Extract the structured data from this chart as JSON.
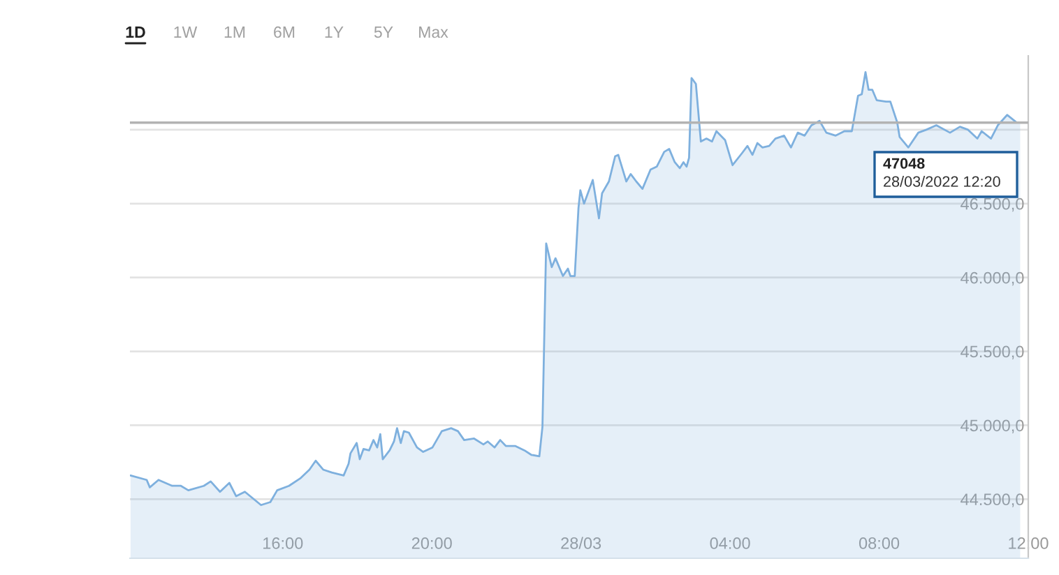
{
  "chart_data": {
    "type": "area",
    "x": [
      "2022-03-27T11:55",
      "2022-03-27T12:21",
      "2022-03-27T12:26",
      "2022-03-27T12:40",
      "2022-03-27T13:02",
      "2022-03-27T13:16",
      "2022-03-27T13:28",
      "2022-03-27T13:53",
      "2022-03-27T14:04",
      "2022-03-27T14:19",
      "2022-03-27T14:34",
      "2022-03-27T14:45",
      "2022-03-27T14:59",
      "2022-03-27T15:25",
      "2022-03-27T15:40",
      "2022-03-27T15:51",
      "2022-03-27T16:10",
      "2022-03-27T16:28",
      "2022-03-27T16:43",
      "2022-03-27T16:53",
      "2022-03-27T17:05",
      "2022-03-27T17:19",
      "2022-03-27T17:38",
      "2022-03-27T17:46",
      "2022-03-27T17:49",
      "2022-03-27T17:59",
      "2022-03-27T18:04",
      "2022-03-27T18:10",
      "2022-03-27T18:19",
      "2022-03-27T18:26",
      "2022-03-27T18:32",
      "2022-03-27T18:37",
      "2022-03-27T18:41",
      "2022-03-27T18:52",
      "2022-03-27T18:59",
      "2022-03-27T19:04",
      "2022-03-27T19:10",
      "2022-03-27T19:15",
      "2022-03-27T19:23",
      "2022-03-27T19:36",
      "2022-03-27T19:46",
      "2022-03-27T20:01",
      "2022-03-27T20:16",
      "2022-03-27T20:31",
      "2022-03-27T20:42",
      "2022-03-27T20:52",
      "2022-03-27T21:08",
      "2022-03-27T21:23",
      "2022-03-27T21:30",
      "2022-03-27T21:41",
      "2022-03-27T21:50",
      "2022-03-27T21:59",
      "2022-03-27T22:14",
      "2022-03-27T22:29",
      "2022-03-27T22:40",
      "2022-03-27T22:53",
      "2022-03-27T22:58",
      "2022-03-27T23:04",
      "2022-03-27T23:13",
      "2022-03-27T23:19",
      "2022-03-27T23:31",
      "2022-03-27T23:39",
      "2022-03-27T23:43",
      "2022-03-27T23:50",
      "2022-03-27T23:56",
      "2022-03-27T23:59",
      "2022-03-28T00:05",
      "2022-03-28T00:19",
      "2022-03-28T00:29",
      "2022-03-28T00:34",
      "2022-03-28T00:45",
      "2022-03-28T00:55",
      "2022-03-28T01:00",
      "2022-03-28T01:05",
      "2022-03-28T01:13",
      "2022-03-28T01:20",
      "2022-03-28T01:29",
      "2022-03-28T01:39",
      "2022-03-28T01:52",
      "2022-03-28T02:02",
      "2022-03-28T02:14",
      "2022-03-28T02:22",
      "2022-03-28T02:31",
      "2022-03-28T02:39",
      "2022-03-28T02:45",
      "2022-03-28T02:50",
      "2022-03-28T02:54",
      "2022-03-28T02:58",
      "2022-03-28T03:05",
      "2022-03-28T03:13",
      "2022-03-28T03:22",
      "2022-03-28T03:31",
      "2022-03-28T03:38",
      "2022-03-28T03:52",
      "2022-03-28T04:04",
      "2022-03-28T04:19",
      "2022-03-28T04:28",
      "2022-03-28T04:36",
      "2022-03-28T04:44",
      "2022-03-28T04:52",
      "2022-03-28T05:03",
      "2022-03-28T05:13",
      "2022-03-28T05:27",
      "2022-03-28T05:38",
      "2022-03-28T05:49",
      "2022-03-28T06:00",
      "2022-03-28T06:11",
      "2022-03-28T06:24",
      "2022-03-28T06:35",
      "2022-03-28T06:50",
      "2022-03-28T07:04",
      "2022-03-28T07:16",
      "2022-03-28T07:26",
      "2022-03-28T07:32",
      "2022-03-28T07:38",
      "2022-03-28T07:43",
      "2022-03-28T07:49",
      "2022-03-28T07:56",
      "2022-03-28T08:11",
      "2022-03-28T08:18",
      "2022-03-28T08:29",
      "2022-03-28T08:33",
      "2022-03-28T08:47",
      "2022-03-28T09:03",
      "2022-03-28T09:16",
      "2022-03-28T09:32",
      "2022-03-28T09:54",
      "2022-03-28T10:10",
      "2022-03-28T10:23",
      "2022-03-28T10:38",
      "2022-03-28T10:45",
      "2022-03-28T11:00",
      "2022-03-28T11:11",
      "2022-03-28T11:26",
      "2022-03-28T11:41",
      "2022-03-28T11:47"
    ],
    "series": [
      {
        "color": "#7eb0de",
        "values": [
          44660,
          44630,
          44580,
          44630,
          44590,
          44590,
          44560,
          44590,
          44620,
          44550,
          44610,
          44520,
          44550,
          44460,
          44480,
          44560,
          44590,
          44640,
          44700,
          44760,
          44700,
          44680,
          44660,
          44740,
          44810,
          44880,
          44770,
          44840,
          44830,
          44900,
          44850,
          44940,
          44770,
          44830,
          44890,
          44980,
          44880,
          44960,
          44950,
          44850,
          44820,
          44850,
          44960,
          44980,
          44960,
          44900,
          44910,
          44870,
          44890,
          44850,
          44900,
          44860,
          44860,
          44830,
          44800,
          44790,
          44990,
          46230,
          46070,
          46130,
          46010,
          46060,
          46010,
          46010,
          46470,
          46590,
          46500,
          46660,
          46400,
          46570,
          46650,
          46820,
          46830,
          46760,
          46650,
          46700,
          46650,
          46600,
          46730,
          46750,
          46850,
          46870,
          46780,
          46740,
          46780,
          46750,
          46810,
          47350,
          47310,
          46920,
          46940,
          46920,
          46990,
          46930,
          46760,
          46840,
          46890,
          46830,
          46910,
          46880,
          46890,
          46940,
          46960,
          46880,
          46980,
          46960,
          47030,
          47060,
          46980,
          46960,
          46990,
          46990,
          47230,
          47240,
          47390,
          47270,
          47270,
          47200,
          47190,
          47190,
          47050,
          46950,
          46880,
          46980,
          47000,
          47030,
          46980,
          47020,
          47000,
          46940,
          46990,
          46940,
          47030,
          47100,
          47050,
          47050
        ]
      }
    ],
    "xlim": [
      "2022-03-27T11:54",
      "2022-03-28T12:00"
    ],
    "xticks": [
      {
        "value": "2022-03-27T16:00",
        "label": "16:00"
      },
      {
        "value": "2022-03-27T20:00",
        "label": "20:00"
      },
      {
        "value": "2022-03-28T00:00",
        "label": "28/03"
      },
      {
        "value": "2022-03-28T04:00",
        "label": "04:00"
      },
      {
        "value": "2022-03-28T08:00",
        "label": "08:00"
      },
      {
        "value": "2022-03-28T12:00",
        "label": "12:00"
      }
    ],
    "ylim": [
      44100,
      47500
    ],
    "yticks": [
      {
        "value": 44500,
        "label": "44.500,0"
      },
      {
        "value": 45000,
        "label": "45.000,0"
      },
      {
        "value": 45500,
        "label": "45.500,0"
      },
      {
        "value": 46000,
        "label": "46.000,0"
      },
      {
        "value": 46500,
        "label": "46.500,0"
      },
      {
        "value": 47000,
        "label": null
      }
    ],
    "grid": "y",
    "ref_lines": [
      {
        "axis": "y",
        "value": 47048,
        "label": "47048",
        "color": "#b3b3b3"
      }
    ],
    "annotations": [
      "1D",
      "1W",
      "1M",
      "6M",
      "1Y",
      "5Y",
      "Max",
      "28/03/2022 12:20"
    ]
  }
}
